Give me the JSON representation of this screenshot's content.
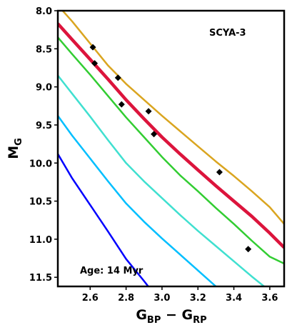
{
  "chart_data": {
    "type": "line",
    "title": "",
    "xlabel": {
      "main": "G",
      "sub1": "BP",
      "op": " − ",
      "main2": "G",
      "sub2": "RP"
    },
    "ylabel": {
      "main": "M",
      "sub": "G"
    },
    "xlim": [
      2.42,
      3.68
    ],
    "ylim": [
      11.62,
      8.0
    ],
    "y_inverted": true,
    "x_ticks": [
      2.6,
      2.8,
      3.0,
      3.2,
      3.4,
      3.6
    ],
    "x_tick_labels": [
      "2.6",
      "2.8",
      "3.0",
      "3.2",
      "3.4",
      "3.6"
    ],
    "y_ticks": [
      8.0,
      8.5,
      9.0,
      9.5,
      10.0,
      10.5,
      11.0,
      11.5
    ],
    "y_tick_labels": [
      "8.0",
      "8.5",
      "9.0",
      "9.5",
      "10.0",
      "10.5",
      "11.0",
      "11.5"
    ],
    "grid": false,
    "annotations": [
      {
        "text": "SCYA-3",
        "x": 3.38,
        "y": 8.28
      },
      {
        "text": "Age: 14 Myr",
        "x": 2.55,
        "y": 11.45
      }
    ],
    "series": [
      {
        "color": "#DAA520",
        "width": 2.5,
        "x": [
          2.42,
          2.5,
          2.6,
          2.7,
          2.8,
          2.9,
          3.0,
          3.1,
          3.2,
          3.3,
          3.4,
          3.5,
          3.6,
          3.68
        ],
        "y": [
          7.93,
          8.14,
          8.43,
          8.72,
          8.96,
          9.17,
          9.38,
          9.58,
          9.78,
          9.98,
          10.17,
          10.37,
          10.58,
          10.8
        ]
      },
      {
        "color": "#DC143C",
        "width": 4.5,
        "x": [
          2.42,
          2.5,
          2.6,
          2.7,
          2.8,
          2.9,
          3.0,
          3.1,
          3.2,
          3.3,
          3.4,
          3.5,
          3.6,
          3.68
        ],
        "y": [
          8.17,
          8.38,
          8.64,
          8.9,
          9.17,
          9.42,
          9.66,
          9.88,
          10.09,
          10.3,
          10.5,
          10.7,
          10.92,
          11.11
        ]
      },
      {
        "color": "#32CD32",
        "width": 2.5,
        "x": [
          2.42,
          2.5,
          2.6,
          2.7,
          2.8,
          2.9,
          3.0,
          3.1,
          3.2,
          3.3,
          3.4,
          3.5,
          3.6,
          3.68
        ],
        "y": [
          8.35,
          8.57,
          8.84,
          9.12,
          9.4,
          9.66,
          9.92,
          10.16,
          10.37,
          10.59,
          10.8,
          11.02,
          11.23,
          11.32
        ]
      },
      {
        "color": "#40E0D0",
        "width": 2.5,
        "x": [
          2.42,
          2.5,
          2.6,
          2.7,
          2.8,
          2.9,
          3.0,
          3.1,
          3.2,
          3.3,
          3.4,
          3.5,
          3.6
        ],
        "y": [
          8.85,
          9.09,
          9.39,
          9.7,
          10.0,
          10.24,
          10.46,
          10.68,
          10.89,
          11.09,
          11.29,
          11.49,
          11.68
        ]
      },
      {
        "color": "#00BFFF",
        "width": 2.5,
        "x": [
          2.42,
          2.5,
          2.6,
          2.7,
          2.8,
          2.9,
          3.0,
          3.1,
          3.2,
          3.3,
          3.35
        ],
        "y": [
          9.38,
          9.64,
          9.94,
          10.24,
          10.53,
          10.77,
          10.99,
          11.2,
          11.41,
          11.62,
          11.73
        ]
      },
      {
        "color": "#0000FF",
        "width": 2.5,
        "x": [
          2.42,
          2.5,
          2.6,
          2.7,
          2.8,
          2.9,
          2.95
        ],
        "y": [
          9.88,
          10.2,
          10.55,
          10.9,
          11.26,
          11.55,
          11.7
        ]
      }
    ],
    "points": {
      "color": "#000000",
      "x": [
        2.615,
        2.625,
        2.755,
        2.775,
        2.925,
        2.955,
        3.32,
        3.48
      ],
      "y": [
        8.48,
        8.69,
        8.88,
        9.23,
        9.32,
        9.62,
        10.12,
        11.13
      ]
    }
  }
}
